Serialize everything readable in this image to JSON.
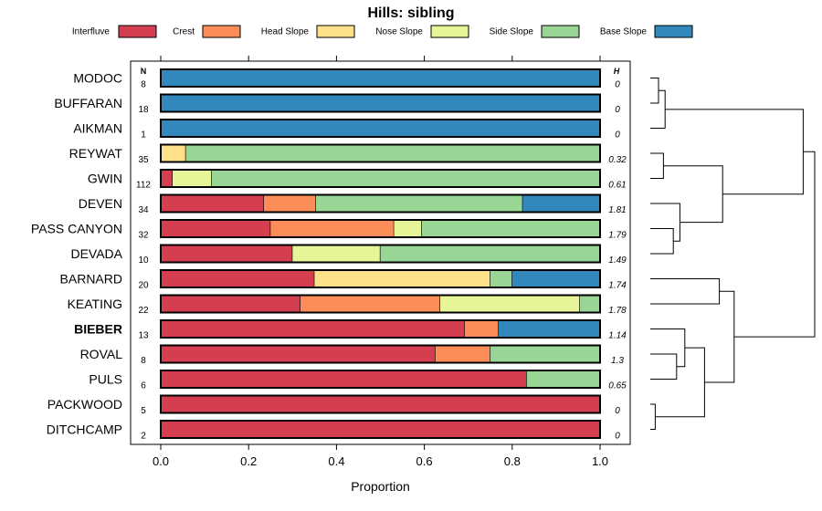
{
  "chart_data": {
    "type": "bar",
    "stacked": true,
    "orientation": "horizontal",
    "title": "Hills: sibling",
    "xlabel": "Proportion",
    "ylabel": "",
    "xlim": [
      0,
      1
    ],
    "x_ticks": [
      "0.0",
      "0.2",
      "0.4",
      "0.6",
      "0.8",
      "1.0"
    ],
    "n_header": "N",
    "h_header": "H",
    "legend_position": "top",
    "series": [
      {
        "name": "Interfluve",
        "color": "#D53E4F"
      },
      {
        "name": "Crest",
        "color": "#FC8D59"
      },
      {
        "name": "Head Slope",
        "color": "#FEE08B"
      },
      {
        "name": "Nose Slope",
        "color": "#E6F598"
      },
      {
        "name": "Side Slope",
        "color": "#99D594"
      },
      {
        "name": "Base Slope",
        "color": "#3288BD"
      }
    ],
    "rows": [
      {
        "label": "MODOC",
        "bold": false,
        "n": "8",
        "h": "0",
        "values": [
          0,
          0,
          0,
          0,
          0,
          1.0
        ]
      },
      {
        "label": "BUFFARAN",
        "bold": false,
        "n": "18",
        "h": "0",
        "values": [
          0,
          0,
          0,
          0,
          0,
          1.0
        ]
      },
      {
        "label": "AIKMAN",
        "bold": false,
        "n": "1",
        "h": "0",
        "values": [
          0,
          0,
          0,
          0,
          0,
          1.0
        ]
      },
      {
        "label": "REYWAT",
        "bold": false,
        "n": "35",
        "h": "0.32",
        "values": [
          0,
          0,
          0.057,
          0,
          0.943,
          0
        ]
      },
      {
        "label": "GWIN",
        "bold": false,
        "n": "112",
        "h": "0.61",
        "values": [
          0.027,
          0,
          0,
          0.089,
          0.884,
          0
        ]
      },
      {
        "label": "DEVEN",
        "bold": false,
        "n": "34",
        "h": "1.81",
        "values": [
          0.235,
          0.118,
          0,
          0,
          0.471,
          0.176
        ]
      },
      {
        "label": "PASS CANYON",
        "bold": false,
        "n": "32",
        "h": "1.79",
        "values": [
          0.25,
          0.281,
          0,
          0.063,
          0.406,
          0
        ]
      },
      {
        "label": "DEVADA",
        "bold": false,
        "n": "10",
        "h": "1.49",
        "values": [
          0.3,
          0,
          0,
          0.2,
          0.5,
          0
        ]
      },
      {
        "label": "BARNARD",
        "bold": false,
        "n": "20",
        "h": "1.74",
        "values": [
          0.35,
          0,
          0.4,
          0,
          0.05,
          0.2
        ]
      },
      {
        "label": "KEATING",
        "bold": false,
        "n": "22",
        "h": "1.78",
        "values": [
          0.318,
          0.318,
          0,
          0.318,
          0.046,
          0
        ]
      },
      {
        "label": "BIEBER",
        "bold": true,
        "n": "13",
        "h": "1.14",
        "values": [
          0.692,
          0.077,
          0,
          0,
          0,
          0.231
        ]
      },
      {
        "label": "ROVAL",
        "bold": false,
        "n": "8",
        "h": "1.3",
        "values": [
          0.625,
          0.125,
          0,
          0,
          0.25,
          0
        ]
      },
      {
        "label": "PULS",
        "bold": false,
        "n": "6",
        "h": "0.65",
        "values": [
          0.833,
          0,
          0,
          0,
          0.167,
          0
        ]
      },
      {
        "label": "PACKWOOD",
        "bold": false,
        "n": "5",
        "h": "0",
        "values": [
          1.0,
          0,
          0,
          0,
          0,
          0
        ]
      },
      {
        "label": "DITCHCAMP",
        "bold": false,
        "n": "2",
        "h": "0",
        "values": [
          1.0,
          0,
          0,
          0,
          0,
          0
        ]
      }
    ],
    "dendrogram": {
      "order": [
        "MODOC",
        "BUFFARAN",
        "AIKMAN",
        "REYWAT",
        "GWIN",
        "DEVEN",
        "PASS CANYON",
        "DEVADA",
        "BARNARD",
        "KEATING",
        "BIEBER",
        "ROVAL",
        "PULS",
        "PACKWOOD",
        "DITCHCAMP"
      ],
      "merges": [
        {
          "a": "MODOC",
          "b": "BUFFARAN",
          "height": 0.05
        },
        {
          "a": "MODOC+BUFFARAN",
          "b": "AIKMAN",
          "height": 0.09
        },
        {
          "a": "REYWAT",
          "b": "GWIN",
          "height": 0.08
        },
        {
          "a": "PASS CANYON",
          "b": "DEVADA",
          "height": 0.14
        },
        {
          "a": "DEVEN",
          "b": "PASS CANYON+DEVADA",
          "height": 0.18
        },
        {
          "a": "REYWAT+GWIN",
          "b": "DEVEN+PASS CANYON+DEVADA",
          "height": 0.44
        },
        {
          "a": "MODOC+BUFFARAN+AIKMAN",
          "b": "REYWAT+...+DEVADA",
          "height": 0.93
        },
        {
          "a": "BARNARD",
          "b": "KEATING",
          "height": 0.42
        },
        {
          "a": "ROVAL",
          "b": "PULS",
          "height": 0.16
        },
        {
          "a": "ROVAL+PULS",
          "b": "BIEBER",
          "height": 0.21
        },
        {
          "a": "PACKWOOD",
          "b": "DITCHCAMP",
          "height": 0.03
        },
        {
          "a": "BIEBER+ROVAL+PULS",
          "b": "PACKWOOD+DITCHCAMP",
          "height": 0.33
        },
        {
          "a": "BARNARD+KEATING",
          "b": "BIEBER+...+DITCHCAMP",
          "height": 0.51
        },
        {
          "a": "left cluster",
          "b": "right cluster",
          "height": 1.0
        }
      ]
    }
  }
}
